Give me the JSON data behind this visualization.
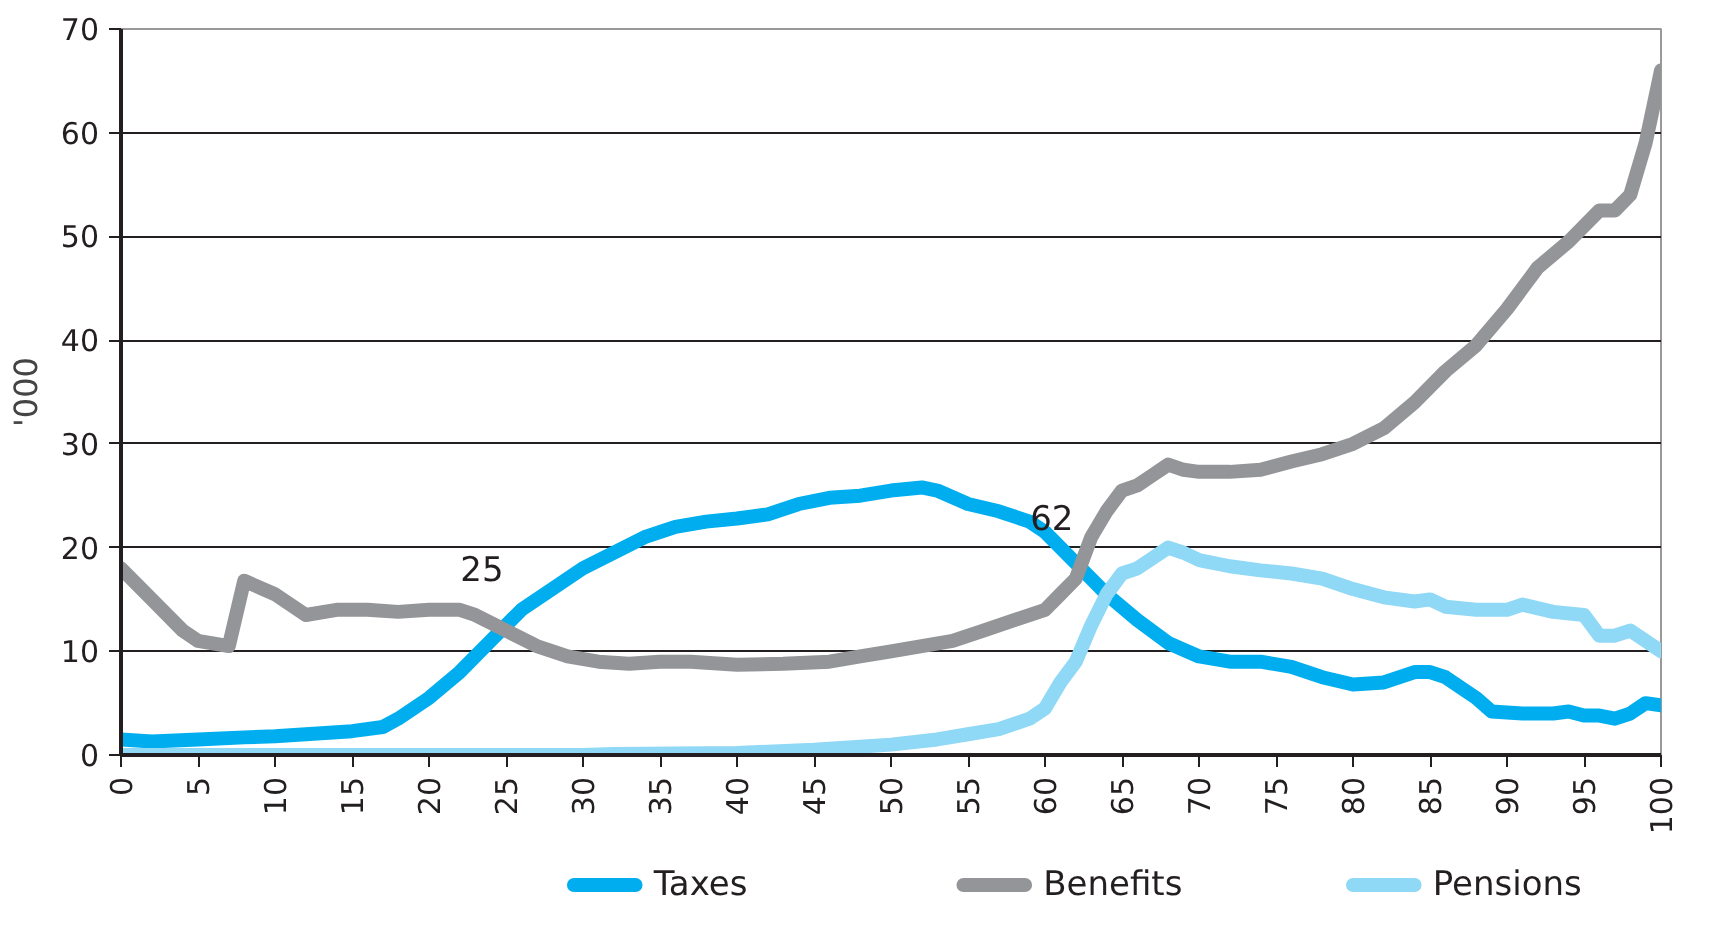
{
  "chart_data": {
    "type": "line",
    "ylabel": "'000",
    "xlim": [
      0,
      100
    ],
    "ylim": [
      0,
      70
    ],
    "xticks": [
      0,
      5,
      10,
      15,
      20,
      25,
      30,
      35,
      40,
      45,
      50,
      55,
      60,
      65,
      70,
      75,
      80,
      85,
      90,
      95,
      100
    ],
    "yticks": [
      0,
      10,
      20,
      30,
      40,
      50,
      60,
      70
    ],
    "grid": "y",
    "legend": "bottom",
    "line_style": "solid",
    "marker": "none",
    "annotations": [
      {
        "text": "25",
        "x": 25,
        "y": 12.5
      },
      {
        "text": "62",
        "x": 62,
        "y": 17.5
      }
    ],
    "series": [
      {
        "name": "Taxes",
        "color": "#00aeef",
        "x": [
          0,
          2,
          5,
          8,
          10,
          12,
          15,
          17,
          18,
          20,
          22,
          24,
          26,
          28,
          30,
          32,
          34,
          36,
          38,
          40,
          42,
          44,
          46,
          48,
          50,
          52,
          53,
          55,
          57,
          59,
          60,
          62,
          64,
          66,
          68,
          70,
          72,
          74,
          76,
          78,
          80,
          82,
          84,
          85,
          86,
          88,
          89,
          91,
          93,
          94,
          95,
          96,
          97,
          98,
          99,
          100
        ],
        "values": [
          1.5,
          1.3,
          1.5,
          1.7,
          1.8,
          2,
          2.3,
          2.7,
          3.5,
          5.5,
          8,
          11,
          14,
          16,
          18,
          19.5,
          21,
          22,
          22.5,
          22.8,
          23.2,
          24.2,
          24.8,
          25,
          25.5,
          25.8,
          25.5,
          24.2,
          23.5,
          22.5,
          21.5,
          18.5,
          15.5,
          13,
          10.8,
          9.5,
          9,
          9,
          8.5,
          7.5,
          6.8,
          7,
          8,
          8,
          7.5,
          5.5,
          4.2,
          4,
          4,
          4.2,
          3.8,
          3.8,
          3.5,
          4,
          5,
          4.8
        ]
      },
      {
        "name": "Benefits",
        "color": "#939598",
        "x": [
          0,
          2,
          4,
          5,
          7,
          8,
          10,
          12,
          14,
          16,
          18,
          20,
          22,
          23,
          25,
          27,
          29,
          31,
          33,
          35,
          37,
          40,
          43,
          46,
          48,
          50,
          52,
          54,
          56,
          58,
          60,
          61,
          62,
          63,
          64,
          65,
          66,
          67,
          68,
          69,
          70,
          72,
          74,
          76,
          78,
          80,
          82,
          84,
          86,
          88,
          90,
          92,
          94,
          96,
          97,
          98,
          99,
          100
        ],
        "values": [
          18,
          15,
          12,
          11,
          10.5,
          16.8,
          15.5,
          13.5,
          14,
          14,
          13.8,
          14,
          14,
          13.5,
          12,
          10.5,
          9.5,
          9,
          8.8,
          9,
          9,
          8.7,
          8.8,
          9,
          9.5,
          10,
          10.5,
          11,
          12,
          13,
          14,
          15.5,
          17,
          21,
          23.5,
          25.5,
          26,
          27,
          28,
          27.5,
          27.3,
          27.3,
          27.5,
          28.3,
          29,
          30,
          31.5,
          34,
          37,
          39.5,
          43,
          47,
          49.5,
          52.5,
          52.5,
          54,
          59,
          66
        ]
      },
      {
        "name": "Pensions",
        "color": "#8fd8f6",
        "x": [
          0,
          10,
          20,
          30,
          32,
          40,
          45,
          50,
          53,
          55,
          57,
          59,
          60,
          61,
          62,
          63,
          64,
          65,
          66,
          67,
          68,
          69,
          70,
          72,
          74,
          76,
          78,
          80,
          82,
          84,
          85,
          86,
          88,
          90,
          91,
          93,
          95,
          96,
          97,
          98,
          100
        ],
        "values": [
          0,
          0,
          0,
          0,
          0.1,
          0.2,
          0.5,
          1,
          1.5,
          2,
          2.5,
          3.5,
          4.5,
          7,
          9,
          12.5,
          15.5,
          17.5,
          18,
          19,
          20,
          19.5,
          18.8,
          18.2,
          17.8,
          17.5,
          17,
          16,
          15.2,
          14.8,
          15,
          14.3,
          14,
          14,
          14.5,
          13.8,
          13.5,
          11.5,
          11.5,
          12,
          10
        ]
      }
    ]
  }
}
